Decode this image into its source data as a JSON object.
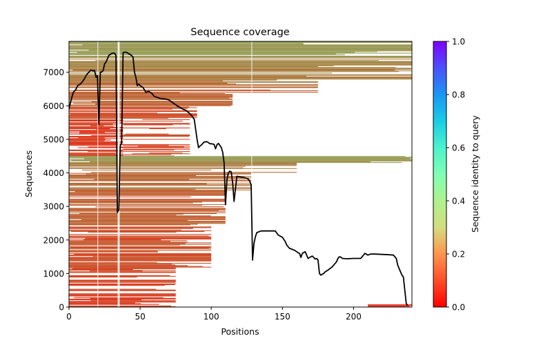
{
  "chart_data": {
    "type": "heatmap",
    "title": "Sequence coverage",
    "xlabel": "Positions",
    "ylabel": "Sequences",
    "xlim": [
      0,
      241
    ],
    "ylim": [
      0,
      7920
    ],
    "xticks": [
      0,
      50,
      100,
      150,
      200
    ],
    "xtick_labels": [
      "0",
      "50",
      "100",
      "150",
      "200"
    ],
    "yticks": [
      0,
      1000,
      2000,
      3000,
      4000,
      5000,
      6000,
      7000
    ],
    "ytick_labels": [
      "0",
      "1000",
      "2000",
      "3000",
      "4000",
      "5000",
      "6000",
      "7000"
    ],
    "grid": false,
    "colormap": "rainbow_r",
    "colorbar": {
      "label": "Sequence identity to query",
      "range": [
        0.0,
        1.0
      ],
      "ticks": [
        0.0,
        0.2,
        0.4,
        0.6,
        0.8,
        1.0
      ],
      "tick_labels": [
        "0.0",
        "0.2",
        "0.4",
        "0.6",
        "0.8",
        "1.0"
      ],
      "placement": "right"
    },
    "coverage_line": {
      "name": "coverage",
      "color": "#000000",
      "x": [
        0,
        1,
        2,
        3,
        4,
        5,
        6,
        7,
        8,
        9,
        10,
        11,
        12,
        13,
        14,
        15,
        16,
        17,
        18,
        19,
        20,
        21,
        22,
        23,
        24,
        25,
        26,
        27,
        28,
        29,
        30,
        31,
        32,
        33,
        34,
        35,
        36,
        37,
        38,
        39,
        40,
        41,
        42,
        43,
        44,
        45,
        46,
        47,
        48,
        49,
        50,
        52,
        54,
        56,
        58,
        60,
        62,
        64,
        66,
        68,
        70,
        72,
        74,
        76,
        78,
        80,
        82,
        84,
        86,
        88,
        90,
        91,
        92,
        93,
        95,
        97,
        99,
        100,
        102,
        103,
        104,
        105,
        106,
        107,
        108,
        109,
        110,
        111,
        112,
        113,
        114,
        115,
        116,
        118,
        120,
        122,
        124,
        126,
        127,
        128,
        129,
        130,
        131,
        132,
        135,
        140,
        145,
        147,
        150,
        152,
        153,
        155,
        157,
        159,
        160,
        161,
        162,
        163,
        164,
        166,
        168,
        170,
        171,
        172,
        173,
        174,
        175,
        176,
        177,
        178,
        179,
        180,
        182,
        185,
        188,
        189,
        190,
        191,
        192,
        195,
        200,
        205,
        208,
        210,
        212,
        215,
        220,
        225,
        228,
        230,
        231,
        232,
        233,
        234,
        235,
        236,
        237,
        238,
        239,
        240
      ],
      "y": [
        5900,
        6100,
        6250,
        6400,
        6450,
        6500,
        6600,
        6620,
        6650,
        6700,
        6750,
        6820,
        6900,
        6960,
        7000,
        7050,
        7060,
        7040,
        7050,
        6850,
        6900,
        5450,
        7000,
        7010,
        7050,
        7250,
        7300,
        7400,
        7500,
        7530,
        7560,
        7570,
        7570,
        7500,
        2820,
        2900,
        4800,
        4900,
        7580,
        7600,
        7600,
        7580,
        7550,
        7530,
        7500,
        7450,
        7000,
        6850,
        6600,
        6650,
        6600,
        6550,
        6400,
        6430,
        6380,
        6280,
        6250,
        6220,
        6210,
        6200,
        6180,
        6120,
        6060,
        6000,
        5950,
        5900,
        5870,
        5800,
        5720,
        5600,
        5000,
        4750,
        4800,
        4830,
        4920,
        4930,
        4870,
        4870,
        4850,
        4720,
        4840,
        4880,
        4820,
        4760,
        4620,
        4300,
        3050,
        3800,
        4000,
        4050,
        4030,
        3700,
        3150,
        3900,
        3880,
        3870,
        3850,
        3820,
        3750,
        3650,
        1400,
        1900,
        2100,
        2220,
        2270,
        2270,
        2270,
        2150,
        2080,
        1950,
        1850,
        1750,
        1720,
        1680,
        1650,
        1620,
        1600,
        1480,
        1600,
        1650,
        1450,
        1500,
        1520,
        1480,
        1430,
        1450,
        1400,
        1000,
        950,
        980,
        1000,
        1050,
        1100,
        1200,
        1350,
        1450,
        1500,
        1490,
        1450,
        1440,
        1450,
        1450,
        1600,
        1550,
        1580,
        1580,
        1570,
        1560,
        1550,
        1450,
        1250,
        1150,
        1050,
        950,
        900,
        500,
        100,
        50
      ]
    },
    "heatmap_blocks": [
      {
        "rows": [
          7450,
          7920
        ],
        "start": 0,
        "end": 241,
        "identity": 0.2,
        "density": 0.92
      },
      {
        "rows": [
          7100,
          7450
        ],
        "start": 0,
        "end": 241,
        "identity": 0.17,
        "density": 0.85
      },
      {
        "rows": [
          6800,
          7100
        ],
        "start": 0,
        "end": 241,
        "identity": 0.16,
        "density": 0.78
      },
      {
        "rows": [
          6400,
          6800
        ],
        "start": 0,
        "end": 175,
        "identity": 0.14,
        "density": 0.75
      },
      {
        "rows": [
          6000,
          6400
        ],
        "start": 0,
        "end": 115,
        "identity": 0.12,
        "density": 0.82
      },
      {
        "rows": [
          5600,
          6000
        ],
        "start": 0,
        "end": 90,
        "identity": 0.1,
        "density": 0.8
      },
      {
        "rows": [
          4500,
          5600
        ],
        "start": 0,
        "end": 38,
        "identity": 0.07,
        "density": 0.85
      },
      {
        "rows": [
          4500,
          5600
        ],
        "start": 38,
        "end": 85,
        "identity": 0.09,
        "density": 0.5
      },
      {
        "rows": [
          4300,
          4500
        ],
        "start": 0,
        "end": 241,
        "identity": 0.2,
        "density": 0.9
      },
      {
        "rows": [
          4000,
          4300
        ],
        "start": 0,
        "end": 160,
        "identity": 0.16,
        "density": 0.75
      },
      {
        "rows": [
          3500,
          4000
        ],
        "start": 0,
        "end": 128,
        "identity": 0.14,
        "density": 0.85
      },
      {
        "rows": [
          2400,
          3500
        ],
        "start": 0,
        "end": 110,
        "identity": 0.12,
        "density": 0.8
      },
      {
        "rows": [
          1200,
          2400
        ],
        "start": 0,
        "end": 100,
        "identity": 0.1,
        "density": 0.78
      },
      {
        "rows": [
          0,
          1200
        ],
        "start": 0,
        "end": 75,
        "identity": 0.08,
        "density": 0.7
      },
      {
        "rows": [
          0,
          80
        ],
        "start": 210,
        "end": 241,
        "identity": 0.05,
        "density": 0.6
      }
    ]
  }
}
